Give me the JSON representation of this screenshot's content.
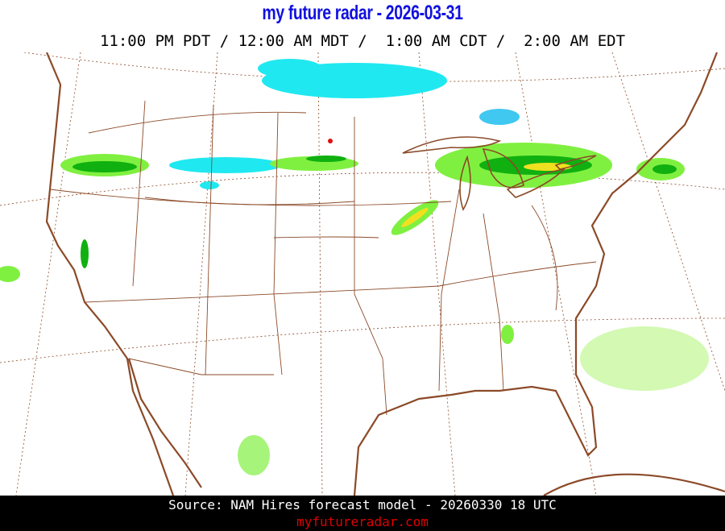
{
  "header": {
    "title": "my future radar - 2026-03-31",
    "times": "11:00 PM PDT / 12:00 AM MDT /  1:00 AM CDT /  2:00 AM EDT"
  },
  "map": {
    "region": "Continental United States",
    "layer": "forecast radar reflectivity",
    "colors": {
      "coastline": "#8b4a28",
      "borders": "#8b4a28",
      "snow": "#20e8f0",
      "light_rain": "#80f040",
      "moderate_rain": "#10b010",
      "heavy_rain": "#f0e020",
      "intense": "#e01010"
    }
  },
  "footer": {
    "source": "Source: NAM Hires forecast model - 20260330 18 UTC",
    "site": "myfutureradar.com"
  }
}
